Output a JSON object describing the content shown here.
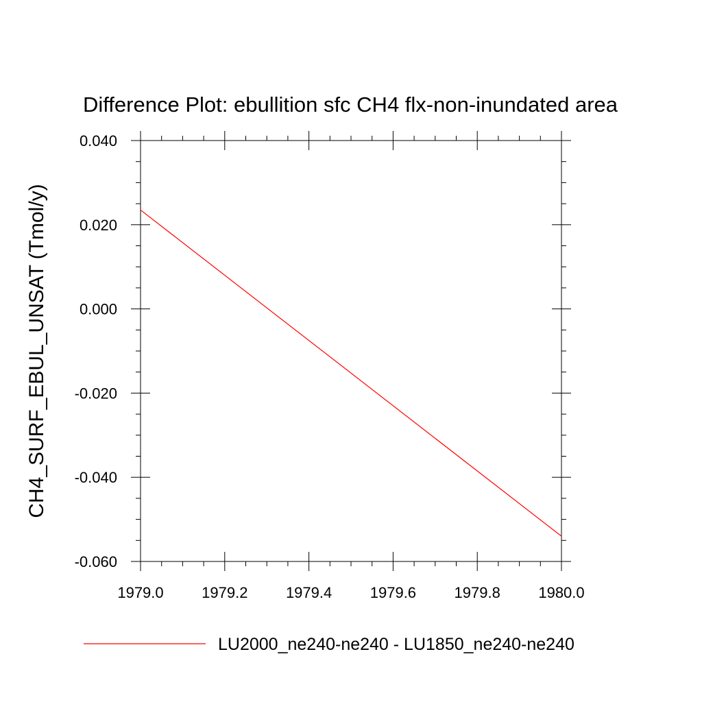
{
  "chart_data": {
    "type": "line",
    "title": "Difference Plot: ebullition sfc CH4 flx-non-inundated area",
    "xlabel": "",
    "ylabel": "CH4_SURF_EBUL_UNSAT  (Tmol/y)",
    "xlim": [
      1979.0,
      1980.0
    ],
    "ylim": [
      -0.06,
      0.04
    ],
    "x_ticks": [
      1979.0,
      1979.2,
      1979.4,
      1979.6,
      1979.8,
      1980.0
    ],
    "x_tick_labels": [
      "1979.0",
      "1979.2",
      "1979.4",
      "1979.6",
      "1979.8",
      "1980.0"
    ],
    "y_ticks": [
      -0.06,
      -0.04,
      -0.02,
      0.0,
      0.02,
      0.04
    ],
    "y_tick_labels": [
      "-0.060",
      "-0.040",
      "-0.020",
      "0.000",
      "0.020",
      "0.040"
    ],
    "grid": false,
    "legend_position": "bottom",
    "series": [
      {
        "name": "LU2000_ne240-ne240 - LU1850_ne240-ne240",
        "color": "#ff0000",
        "x": [
          1979.0,
          1980.0
        ],
        "y": [
          0.0235,
          -0.054
        ]
      }
    ]
  }
}
